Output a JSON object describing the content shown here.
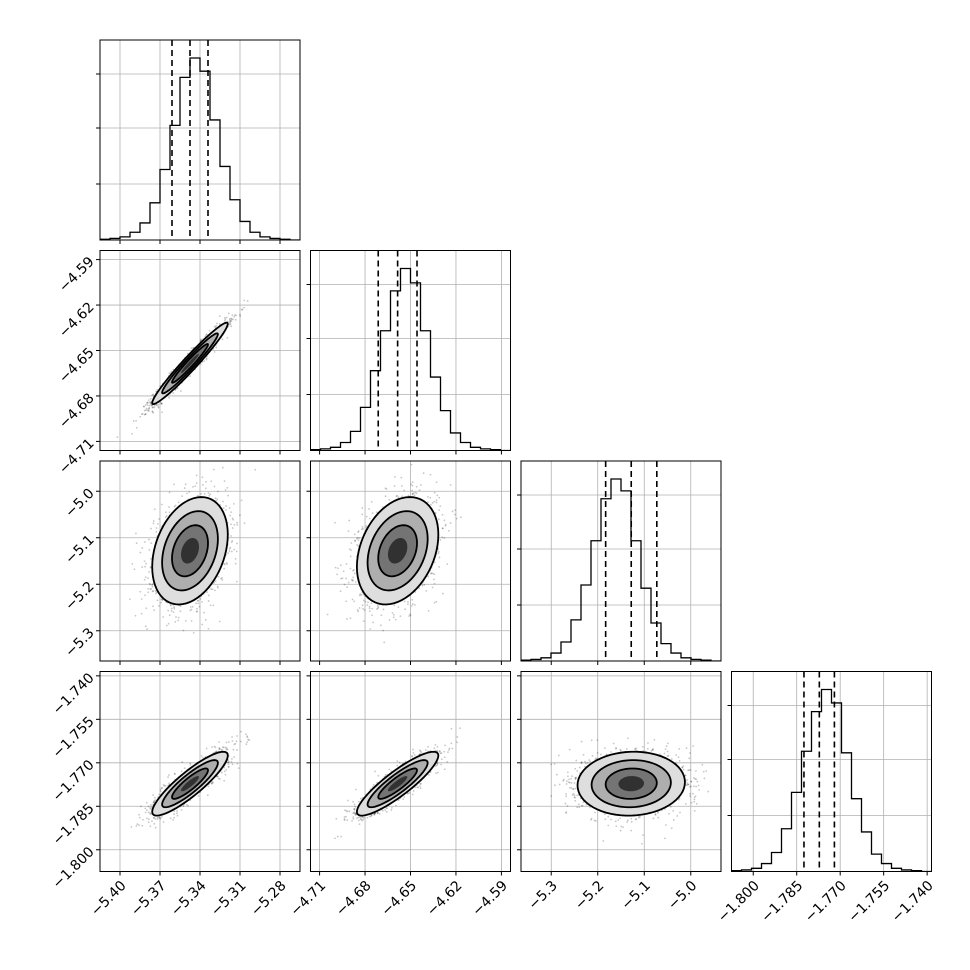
{
  "chart_data": {
    "type": "corner",
    "grid": true,
    "colors": {
      "density": "#000000",
      "grid": "#b0b0b0"
    },
    "parameters": [
      {
        "range": [
          -5.415,
          -5.265
        ],
        "ticks": [
          -5.4,
          -5.37,
          -5.34,
          -5.31,
          -5.28
        ],
        "tick_labels": [
          "−5.40",
          "−5.37",
          "−5.34",
          "−5.31",
          "−5.28"
        ],
        "quantiles": [
          -5.361,
          -5.3475,
          -5.334
        ],
        "histogram": [
          1,
          2,
          4,
          10,
          22,
          48,
          91,
          148,
          210,
          235,
          218,
          155,
          95,
          52,
          24,
          10,
          4,
          2,
          1,
          0
        ]
      },
      {
        "range": [
          -4.716,
          -4.584
        ],
        "ticks": [
          -4.71,
          -4.68,
          -4.65,
          -4.62,
          -4.59
        ],
        "tick_labels": [
          "−4.71",
          "−4.68",
          "−4.65",
          "−4.62",
          "−4.59"
        ],
        "quantiles": [
          -4.6713,
          -4.6585,
          -4.6457
        ],
        "histogram": [
          1,
          2,
          4,
          10,
          24,
          54,
          100,
          150,
          200,
          228,
          210,
          150,
          92,
          50,
          22,
          10,
          4,
          2,
          1,
          0
        ]
      },
      {
        "range": [
          -5.365,
          -4.935
        ],
        "ticks": [
          -5.3,
          -5.2,
          -5.1,
          -5.0
        ],
        "tick_labels": [
          "−5.3",
          "−5.2",
          "−5.1",
          "−5.0"
        ],
        "quantiles": [
          -5.183,
          -5.128,
          -5.073
        ],
        "histogram": [
          1,
          2,
          4,
          10,
          24,
          52,
          96,
          152,
          205,
          230,
          215,
          152,
          92,
          48,
          22,
          10,
          4,
          2,
          1,
          0
        ]
      },
      {
        "range": [
          -1.8075,
          -1.7385
        ],
        "ticks": [
          -1.8,
          -1.785,
          -1.77,
          -1.755,
          -1.74
        ],
        "tick_labels": [
          "−1.800",
          "−1.785",
          "−1.770",
          "−1.755",
          "−1.740"
        ],
        "quantiles": [
          -1.7825,
          -1.7772,
          -1.772
        ],
        "histogram": [
          1,
          2,
          4,
          10,
          24,
          54,
          100,
          152,
          202,
          230,
          213,
          150,
          92,
          50,
          22,
          10,
          4,
          2,
          1,
          0
        ]
      }
    ],
    "correlations": {
      "1,0": 0.97,
      "2,0": 0.3,
      "2,1": 0.3,
      "3,0": 0.88,
      "3,1": 0.88,
      "3,2": 0.05
    }
  }
}
